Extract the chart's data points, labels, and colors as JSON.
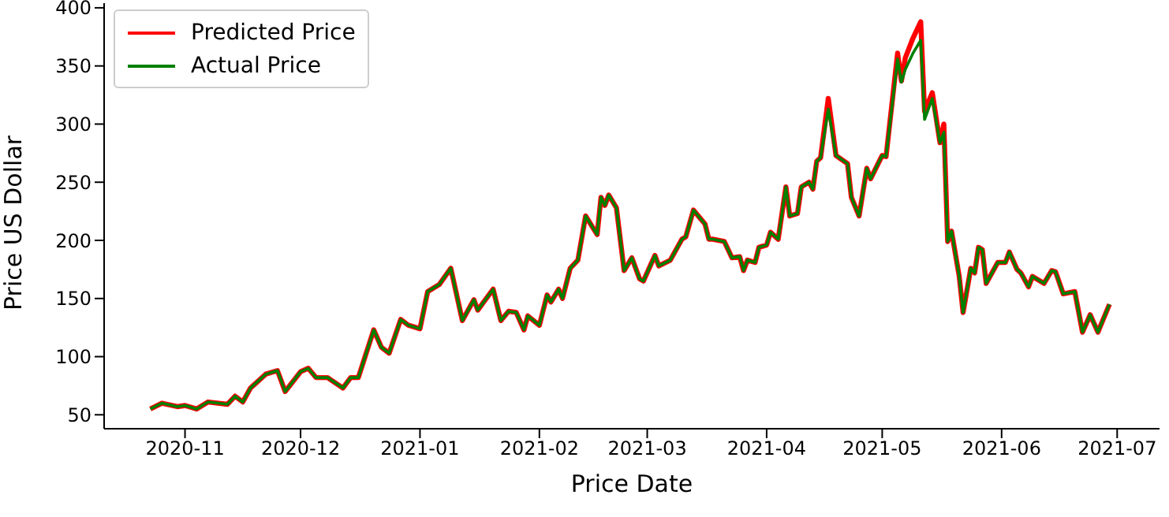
{
  "chart_data": {
    "type": "line",
    "xlabel": "Price Date",
    "ylabel": "Price US Dollar",
    "x": [
      "2020-10-23",
      "2020-10-26",
      "2020-10-30",
      "2020-11-01",
      "2020-11-04",
      "2020-11-07",
      "2020-11-12",
      "2020-11-14",
      "2020-11-16",
      "2020-11-18",
      "2020-11-22",
      "2020-11-25",
      "2020-11-27",
      "2020-12-01",
      "2020-12-03",
      "2020-12-05",
      "2020-12-08",
      "2020-12-12",
      "2020-12-14",
      "2020-12-16",
      "2020-12-20",
      "2020-12-22",
      "2020-12-24",
      "2020-12-27",
      "2020-12-29",
      "2021-01-01",
      "2021-01-03",
      "2021-01-06",
      "2021-01-09",
      "2021-01-12",
      "2021-01-15",
      "2021-01-16",
      "2021-01-20",
      "2021-01-22",
      "2021-01-24",
      "2021-01-26",
      "2021-01-28",
      "2021-01-29",
      "2021-02-01",
      "2021-02-03",
      "2021-02-04",
      "2021-02-06",
      "2021-02-07",
      "2021-02-09",
      "2021-02-11",
      "2021-02-13",
      "2021-02-16",
      "2021-02-17",
      "2021-02-18",
      "2021-02-19",
      "2021-02-21",
      "2021-02-23",
      "2021-02-25",
      "2021-02-27",
      "2021-02-28",
      "2021-03-03",
      "2021-03-04",
      "2021-03-07",
      "2021-03-10",
      "2021-03-11",
      "2021-03-13",
      "2021-03-16",
      "2021-03-17",
      "2021-03-18",
      "2021-03-21",
      "2021-03-23",
      "2021-03-25",
      "2021-03-26",
      "2021-03-27",
      "2021-03-29",
      "2021-03-30",
      "2021-04-01",
      "2021-04-02",
      "2021-04-04",
      "2021-04-06",
      "2021-04-07",
      "2021-04-09",
      "2021-04-10",
      "2021-04-12",
      "2021-04-13",
      "2021-04-14",
      "2021-04-15",
      "2021-04-17",
      "2021-04-19",
      "2021-04-22",
      "2021-04-23",
      "2021-04-25",
      "2021-04-27",
      "2021-04-28",
      "2021-05-01",
      "2021-05-02",
      "2021-05-05",
      "2021-05-06",
      "2021-05-07",
      "2021-05-09",
      "2021-05-11",
      "2021-05-12",
      "2021-05-14",
      "2021-05-16",
      "2021-05-17",
      "2021-05-18",
      "2021-05-19",
      "2021-05-21",
      "2021-05-22",
      "2021-05-24",
      "2021-05-25",
      "2021-05-26",
      "2021-05-27",
      "2021-05-28",
      "2021-05-31",
      "2021-06-02",
      "2021-06-03",
      "2021-06-05",
      "2021-06-06",
      "2021-06-08",
      "2021-06-09",
      "2021-06-12",
      "2021-06-14",
      "2021-06-15",
      "2021-06-17",
      "2021-06-20",
      "2021-06-22",
      "2021-06-24",
      "2021-06-26",
      "2021-06-29"
    ],
    "series": [
      {
        "name": "Predicted Price",
        "color": "#ff0000",
        "values": [
          55,
          60,
          57,
          58,
          55,
          61,
          59,
          66,
          61,
          73,
          85,
          88,
          70,
          87,
          90,
          82,
          82,
          73,
          82,
          82,
          123,
          108,
          103,
          132,
          127,
          124,
          156,
          162,
          176,
          131,
          149,
          140,
          158,
          131,
          139,
          138,
          123,
          135,
          127,
          153,
          147,
          158,
          150,
          176,
          183,
          221,
          205,
          237,
          230,
          239,
          228,
          174,
          185,
          167,
          165,
          187,
          178,
          183,
          201,
          203,
          226,
          214,
          201,
          201,
          199,
          185,
          186,
          174,
          183,
          181,
          194,
          196,
          207,
          201,
          246,
          221,
          223,
          246,
          250,
          244,
          268,
          271,
          322,
          273,
          266,
          237,
          221,
          262,
          253,
          273,
          272,
          361,
          337,
          357,
          374,
          388,
          311,
          327,
          284,
          300,
          199,
          208,
          169,
          138,
          176,
          172,
          194,
          192,
          163,
          181,
          181,
          190,
          175,
          172,
          160,
          169,
          163,
          174,
          173,
          154,
          156,
          121,
          136,
          121,
          145
        ]
      },
      {
        "name": "Actual Price",
        "color": "#008000",
        "values": [
          55,
          60,
          57,
          58,
          55,
          61,
          59,
          66,
          61,
          73,
          85,
          88,
          70,
          87,
          90,
          82,
          82,
          73,
          82,
          82,
          123,
          108,
          103,
          132,
          127,
          124,
          156,
          162,
          176,
          131,
          149,
          140,
          158,
          131,
          139,
          138,
          123,
          135,
          127,
          153,
          147,
          158,
          150,
          176,
          183,
          221,
          205,
          237,
          230,
          239,
          228,
          174,
          185,
          167,
          165,
          187,
          178,
          183,
          201,
          203,
          226,
          214,
          201,
          201,
          199,
          185,
          186,
          174,
          183,
          181,
          194,
          196,
          207,
          201,
          246,
          221,
          223,
          246,
          250,
          244,
          268,
          271,
          313,
          273,
          266,
          237,
          221,
          262,
          253,
          273,
          272,
          356,
          336,
          347,
          361,
          372,
          304,
          322,
          284,
          293,
          199,
          208,
          169,
          138,
          176,
          172,
          194,
          192,
          163,
          181,
          181,
          190,
          175,
          172,
          160,
          169,
          163,
          174,
          173,
          154,
          156,
          121,
          136,
          121,
          145
        ]
      }
    ],
    "xlim": [
      "2020-10-11",
      "2021-07-12"
    ],
    "xticks": [
      "2020-11",
      "2020-12",
      "2021-01",
      "2021-02",
      "2021-03",
      "2021-04",
      "2021-05",
      "2021-06",
      "2021-07"
    ],
    "ylim": [
      38,
      404
    ],
    "yticks": [
      50,
      100,
      150,
      200,
      250,
      300,
      350,
      400
    ],
    "legend": "top left",
    "grid": false,
    "marker": "none",
    "line_style": "solid"
  }
}
